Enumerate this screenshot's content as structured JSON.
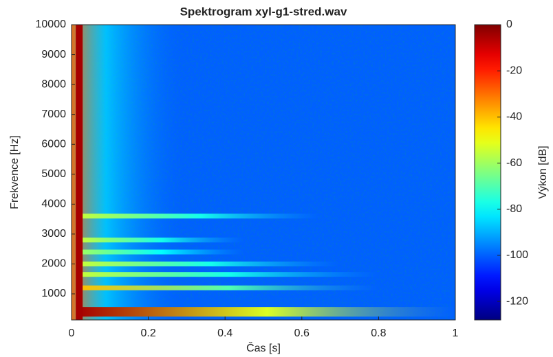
{
  "chart_data": {
    "type": "spectrogram",
    "title": "Spektrogram xyl-g1-stred.wav",
    "x_label": "Čas [s]",
    "y_label": "Frekvence [Hz]",
    "colorbar_label": "Výkon [dB]",
    "xlim": [
      0,
      1
    ],
    "xticks": [
      0,
      0.2,
      0.4,
      0.6,
      0.8,
      1
    ],
    "ylim": [
      128,
      10000
    ],
    "yticks": [
      1000,
      2000,
      3000,
      4000,
      5000,
      6000,
      7000,
      8000,
      9000,
      10000
    ],
    "clim": [
      -128,
      0
    ],
    "cticks": [
      0,
      -20,
      -40,
      -60,
      -80,
      -100,
      -120
    ],
    "colormap": "jet",
    "noise_level": -100,
    "onset": {
      "time": 0.02,
      "level": -5
    },
    "harmonics": {
      "frequency": [
        400,
        1200,
        1650,
        2000,
        2400,
        2800,
        3600
      ],
      "end_time": [
        1,
        0.8,
        0.8,
        0.7,
        0.45,
        0.45,
        0.65
      ],
      "level": [
        -5,
        -40,
        -55,
        -55,
        -60,
        -55,
        -55
      ]
    }
  }
}
